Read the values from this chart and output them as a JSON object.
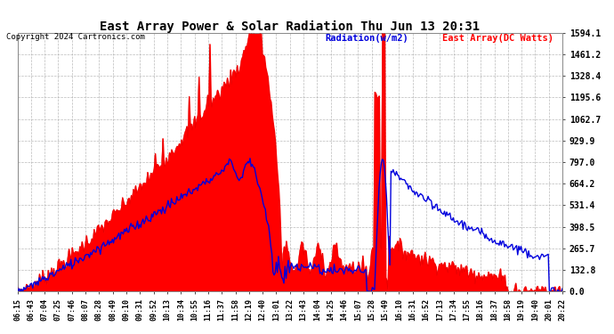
{
  "title": "East Array Power & Solar Radiation Thu Jun 13 20:31",
  "copyright_text": "Copyright 2024 Cartronics.com",
  "legend_radiation": "Radiation(w/m2)",
  "legend_east_array": "East Array(DC Watts)",
  "bg_color": "#ffffff",
  "plot_bg_color": "#ffffff",
  "grid_color": "#aaaaaa",
  "title_color": "#000000",
  "radiation_color": "#0000dd",
  "east_array_color": "#ff0000",
  "east_array_fill": "#ff0000",
  "copyright_color": "#000000",
  "yticks": [
    0.0,
    132.8,
    265.7,
    398.5,
    531.4,
    664.2,
    797.0,
    929.9,
    1062.7,
    1195.6,
    1328.4,
    1461.2,
    1594.1
  ],
  "ylim": [
    0,
    1594.1
  ],
  "xtick_labels": [
    "06:15",
    "06:43",
    "07:04",
    "07:25",
    "07:46",
    "08:07",
    "08:28",
    "08:49",
    "09:10",
    "09:31",
    "09:52",
    "10:13",
    "10:34",
    "10:55",
    "11:16",
    "11:37",
    "11:58",
    "12:19",
    "12:40",
    "13:01",
    "13:22",
    "13:43",
    "14:04",
    "14:25",
    "14:46",
    "15:07",
    "15:28",
    "15:49",
    "16:10",
    "16:31",
    "16:52",
    "17:13",
    "17:34",
    "17:55",
    "18:16",
    "18:37",
    "18:58",
    "19:19",
    "19:40",
    "20:01",
    "20:22"
  ],
  "n_points": 500
}
